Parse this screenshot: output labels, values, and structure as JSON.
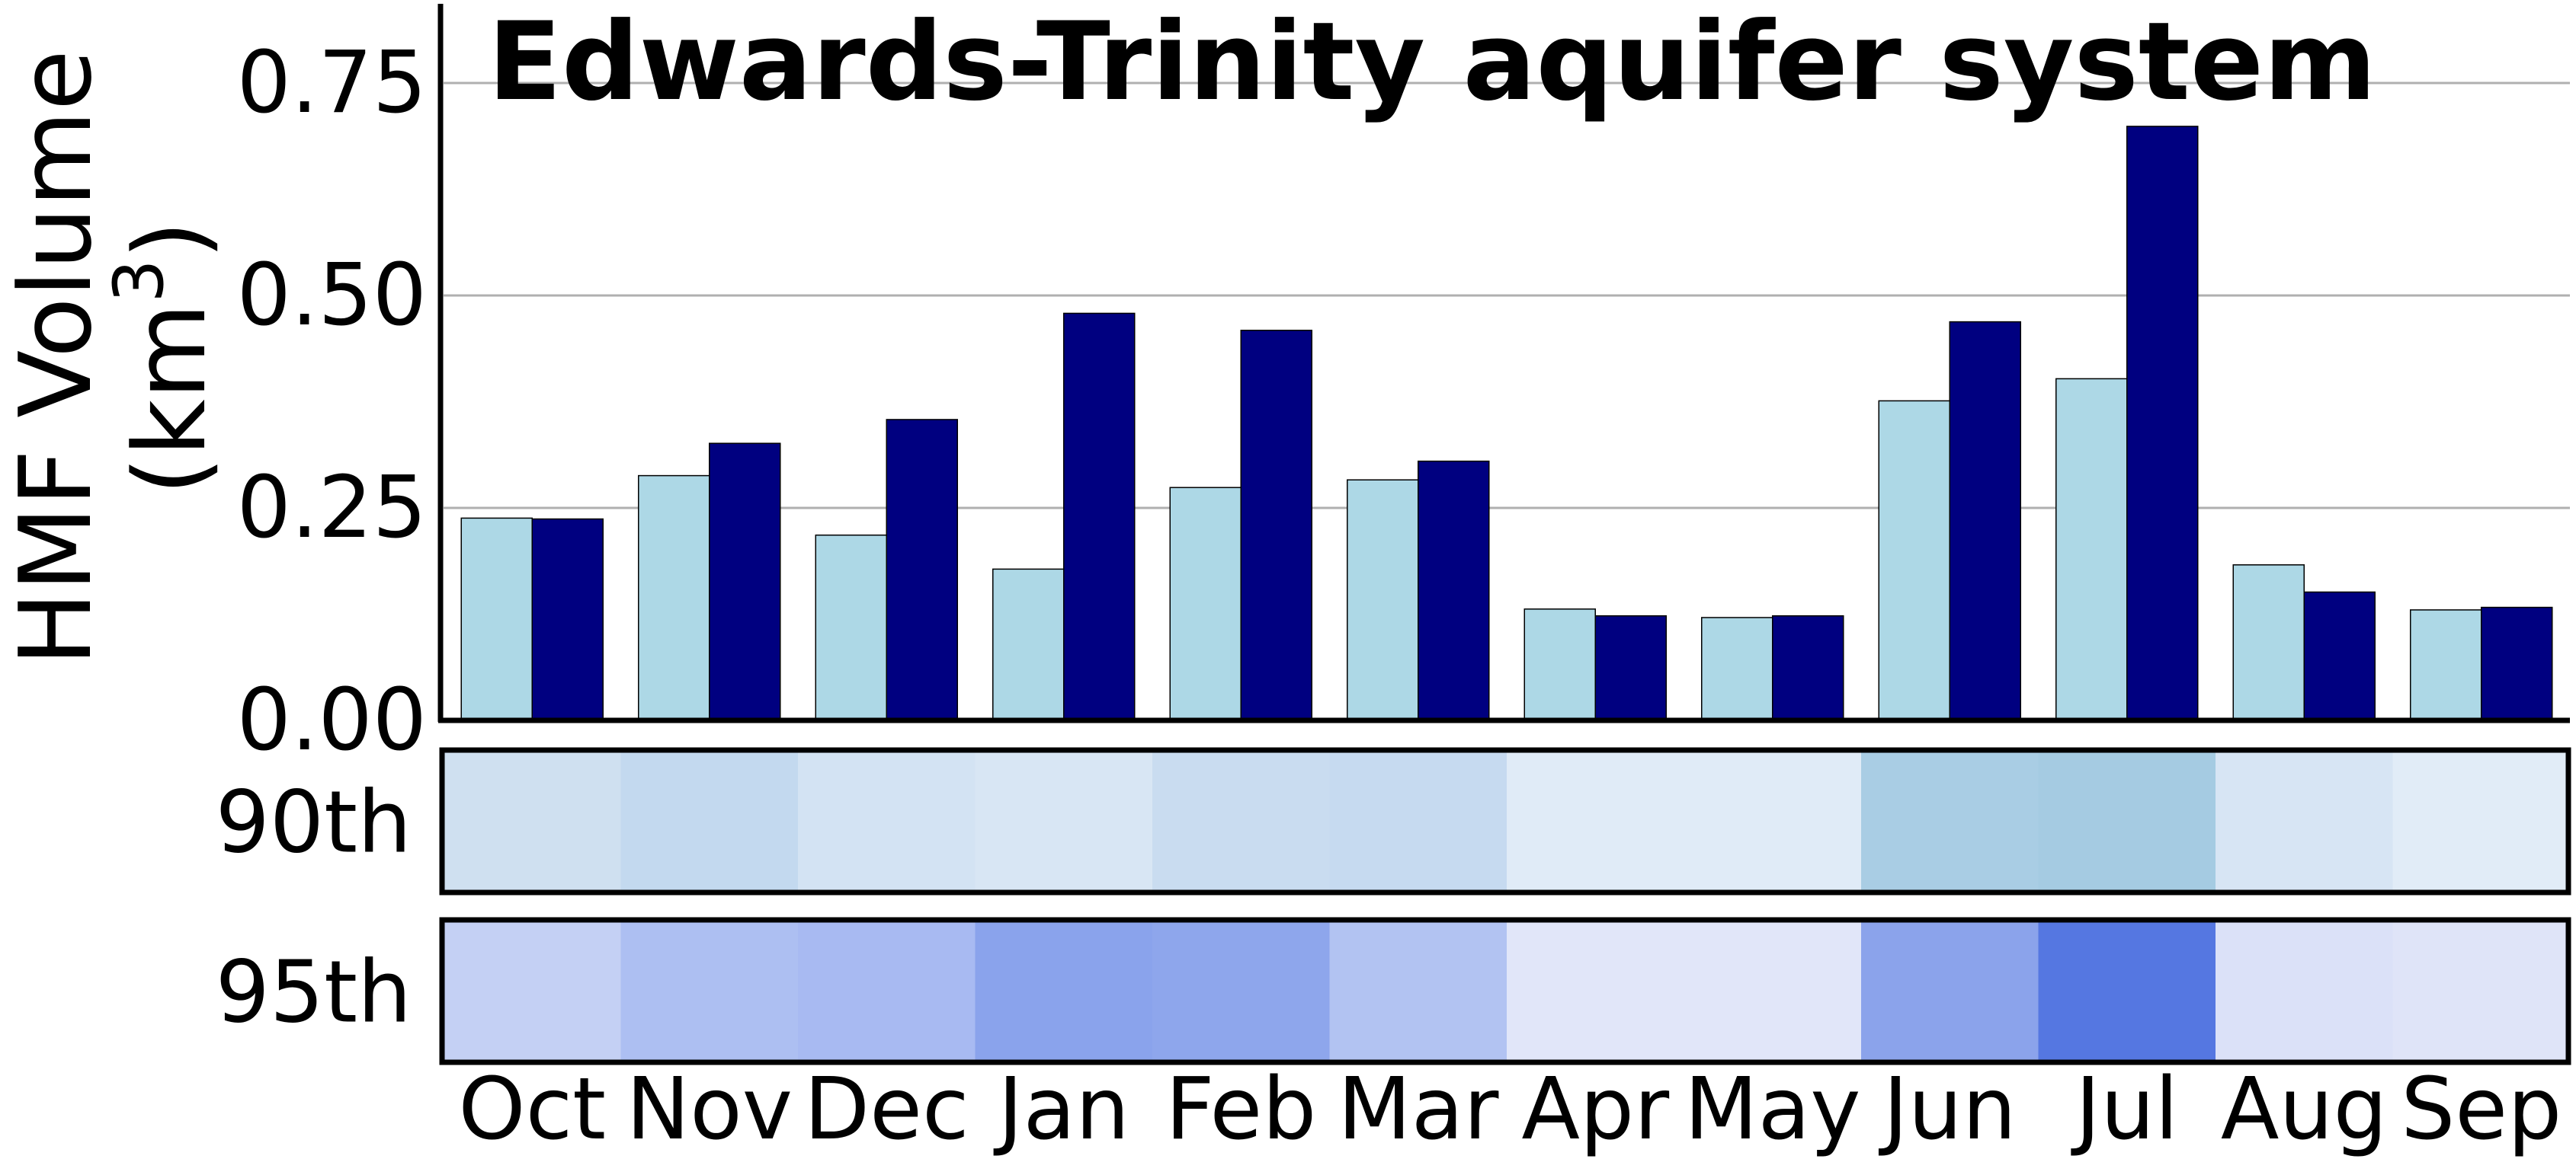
{
  "chart_data": {
    "type": "bar",
    "title": "Edwards-Trinity aquifer system",
    "ylabel_line1": "HMF Volume",
    "ylabel_line2_prefix": "(km",
    "ylabel_line2_sup": "3",
    "ylabel_line2_suffix": ")",
    "ylim": [
      0,
      0.85
    ],
    "yticks": [
      0.0,
      0.25,
      0.5,
      0.75
    ],
    "ytick_labels": [
      "0.00",
      "0.25",
      "0.50",
      "0.75"
    ],
    "grid": "horizontal",
    "categories": [
      "Oct",
      "Nov",
      "Dec",
      "Jan",
      "Feb",
      "Mar",
      "Apr",
      "May",
      "Jun",
      "Jul",
      "Aug",
      "Sep"
    ],
    "series": [
      {
        "color": "#add8e6",
        "values": [
          0.238,
          0.288,
          0.218,
          0.178,
          0.274,
          0.283,
          0.131,
          0.121,
          0.376,
          0.402,
          0.183,
          0.13
        ]
      },
      {
        "color": "#000080",
        "values": [
          0.237,
          0.326,
          0.354,
          0.479,
          0.459,
          0.305,
          0.123,
          0.123,
          0.469,
          0.699,
          0.151,
          0.133
        ]
      }
    ],
    "heatmaps": [
      {
        "label": "90th",
        "colors": [
          "#cfe0f0",
          "#c3d9ef",
          "#d3e3f3",
          "#d8e6f4",
          "#c9dcf0",
          "#c6daf0",
          "#e0ebf7",
          "#e0ebf7",
          "#a9cde4",
          "#a5cbe2",
          "#d7e5f4",
          "#e1ecf7"
        ]
      },
      {
        "label": "95th",
        "colors": [
          "#c4d0f4",
          "#adbff2",
          "#a8baf2",
          "#8aa3ec",
          "#8ea6ec",
          "#b2c3f2",
          "#e1e6f9",
          "#e1e6f9",
          "#8ba3eb",
          "#5577e1",
          "#dbe1f8",
          "#dfe4f8"
        ]
      }
    ]
  }
}
